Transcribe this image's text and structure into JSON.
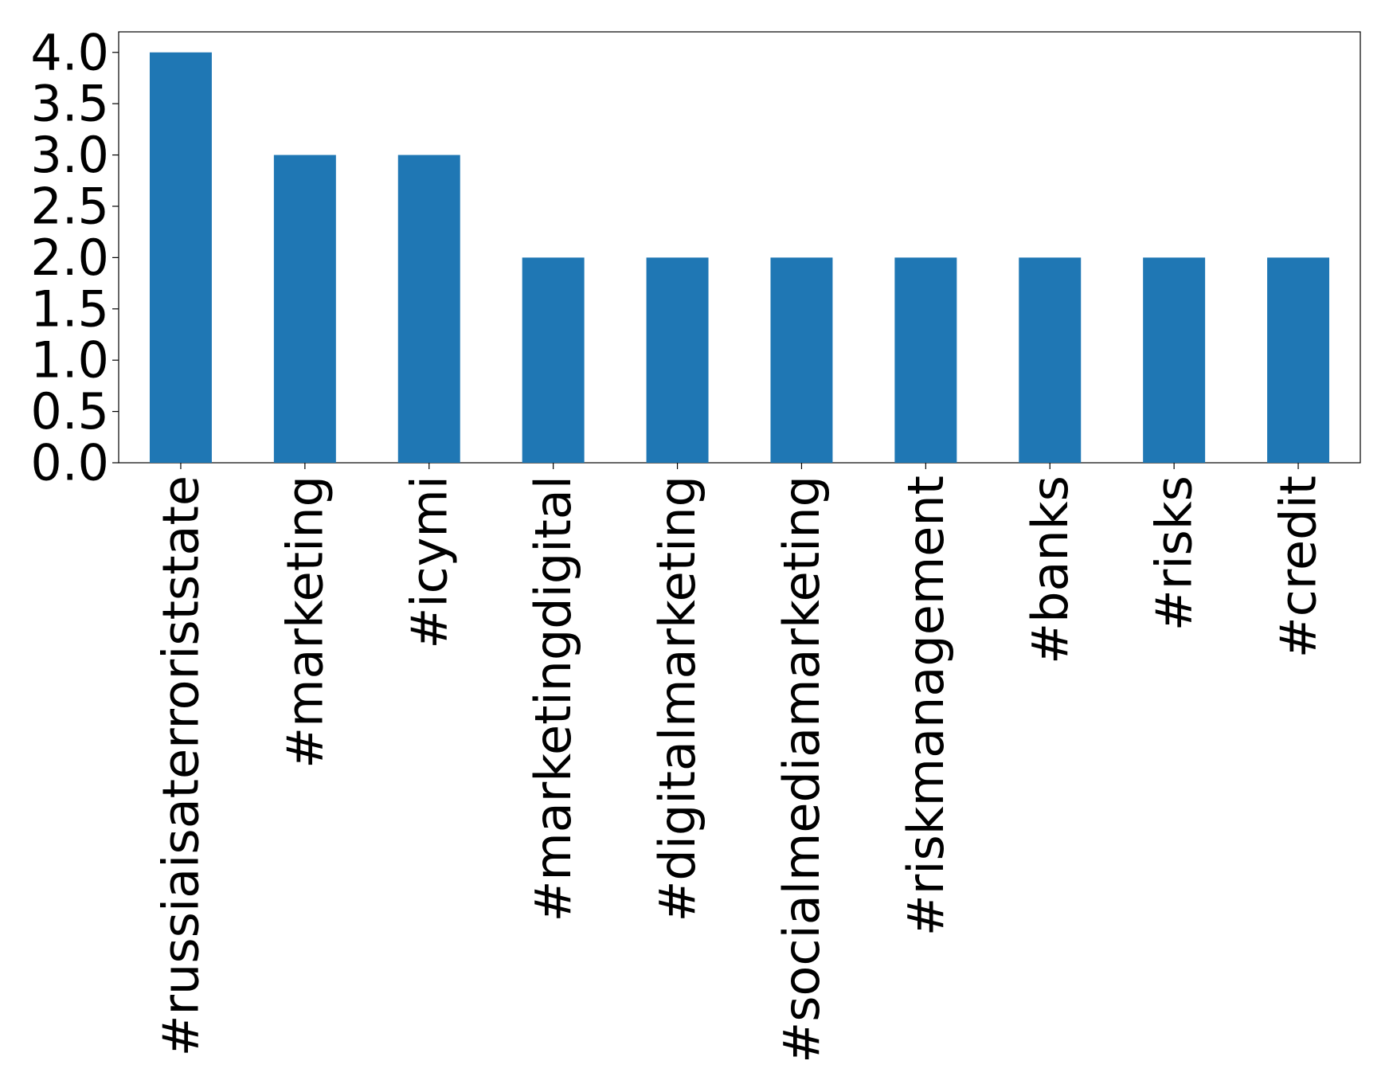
{
  "chart_data": {
    "type": "bar",
    "categories": [
      "#russiaisaterroriststate",
      "#marketing",
      "#icymi",
      "#marketingdigital",
      "#digitalmarketing",
      "#socialmediamarketing",
      "#riskmanagement",
      "#banks",
      "#risks",
      "#credit"
    ],
    "values": [
      4,
      3,
      3,
      2,
      2,
      2,
      2,
      2,
      2,
      2
    ],
    "color": "#1f77b4",
    "ylim": [
      0,
      4.2
    ],
    "yticks": [
      {
        "value": 0,
        "label": "0.0"
      },
      {
        "value": 0.5,
        "label": "0.5"
      },
      {
        "value": 1,
        "label": "1.0"
      },
      {
        "value": 1.5,
        "label": "1.5"
      },
      {
        "value": 2,
        "label": "2.0"
      },
      {
        "value": 2.5,
        "label": "2.5"
      },
      {
        "value": 3,
        "label": "3.0"
      },
      {
        "value": 3.5,
        "label": "3.5"
      },
      {
        "value": 4,
        "label": "4.0"
      }
    ],
    "grid": false
  }
}
